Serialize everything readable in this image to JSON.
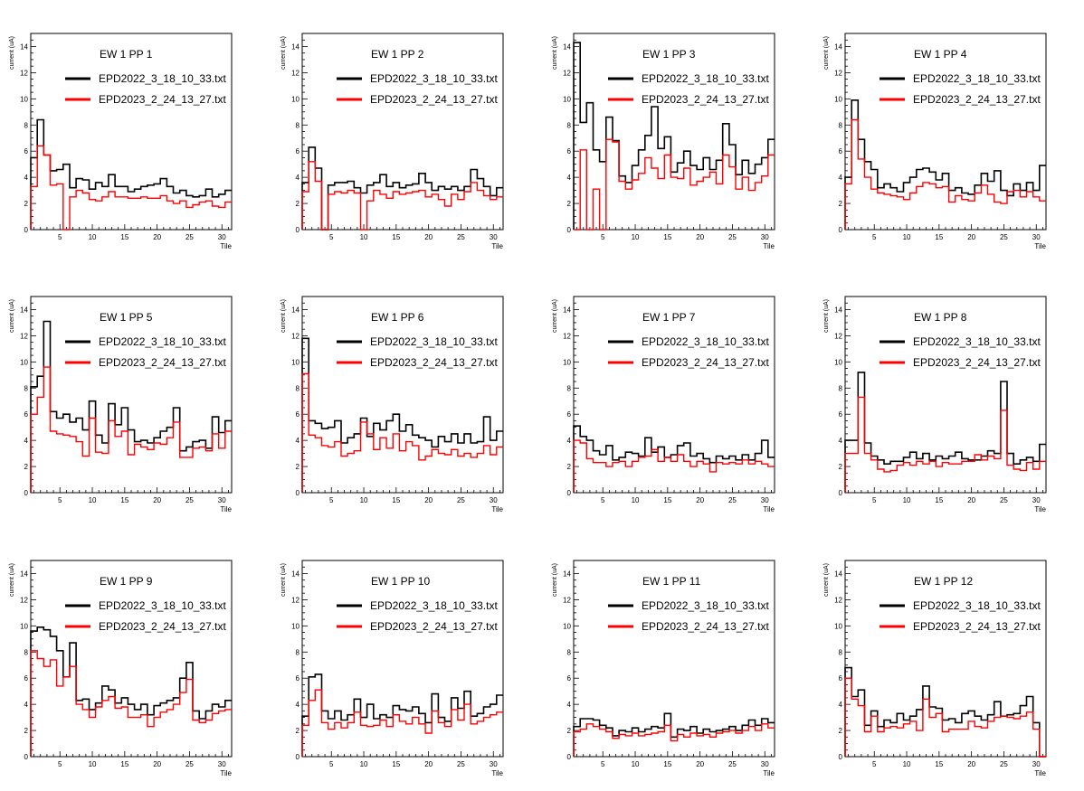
{
  "colors": {
    "series_2022": "#000000",
    "series_2023": "#ff0000"
  },
  "chart_data": [
    {
      "type": "line",
      "title": "EW 1 PP 1",
      "xlabel": "Tile",
      "ylabel": "current (uA)",
      "ylim": [
        0,
        15
      ],
      "xlim": [
        0.5,
        31.5
      ],
      "legend_position": "top",
      "grid": false,
      "series": [
        {
          "name": "EPD2022_3_18_10_33.txt",
          "values": [
            5.5,
            8.4,
            5.7,
            4.5,
            4.6,
            5.0,
            3.2,
            3.9,
            3.8,
            3.1,
            3.6,
            3.3,
            4.2,
            3.3,
            3.3,
            2.9,
            3.1,
            3.3,
            3.4,
            3.5,
            3.9,
            3.3,
            2.8,
            3.0,
            2.6,
            2.5,
            2.6,
            3.1,
            2.5,
            2.7,
            3.0
          ]
        },
        {
          "name": "EPD2023_2_24_13_27.txt",
          "values": [
            3.3,
            6.4,
            5.7,
            3.4,
            3.5,
            0.0,
            2.5,
            3.0,
            2.8,
            2.3,
            2.2,
            2.5,
            2.9,
            2.5,
            2.5,
            2.4,
            2.4,
            2.5,
            2.4,
            2.4,
            2.6,
            2.2,
            2.0,
            2.2,
            1.7,
            1.9,
            2.1,
            2.2,
            1.8,
            1.7,
            2.1
          ]
        }
      ]
    },
    {
      "type": "line",
      "title": "EW 1 PP 2",
      "xlabel": "Tile",
      "ylabel": "current (uA)",
      "ylim": [
        0,
        15
      ],
      "xlim": [
        0.5,
        31.5
      ],
      "legend_position": "top",
      "grid": false,
      "series": [
        {
          "name": "EPD2022_3_18_10_33.txt",
          "values": [
            3.6,
            6.3,
            4.7,
            0.0,
            3.4,
            3.6,
            3.6,
            3.7,
            3.2,
            2.8,
            3.4,
            3.6,
            4.2,
            3.3,
            3.6,
            3.2,
            3.4,
            3.5,
            4.3,
            3.6,
            3.0,
            3.3,
            3.1,
            3.3,
            3.0,
            3.3,
            4.6,
            3.9,
            3.3,
            2.6,
            3.2
          ]
        },
        {
          "name": "EPD2023_2_24_13_27.txt",
          "values": [
            2.9,
            5.2,
            3.7,
            0.0,
            2.7,
            2.9,
            2.8,
            3.0,
            2.8,
            0.0,
            2.2,
            3.0,
            2.7,
            2.4,
            2.9,
            2.7,
            2.8,
            2.9,
            3.0,
            2.5,
            2.7,
            2.3,
            1.8,
            2.7,
            2.3,
            2.9,
            3.6,
            3.0,
            2.6,
            2.3,
            2.5
          ]
        }
      ]
    },
    {
      "type": "line",
      "title": "EW 1 PP 3",
      "xlabel": "Tile",
      "ylabel": "current (uA)",
      "ylim": [
        0,
        15
      ],
      "xlim": [
        0.5,
        31.5
      ],
      "legend_position": "top",
      "grid": false,
      "series": [
        {
          "name": "EPD2022_3_18_10_33.txt",
          "values": [
            14.3,
            8.2,
            9.7,
            6.1,
            5.2,
            8.6,
            6.8,
            4.1,
            3.6,
            4.9,
            6.1,
            7.2,
            9.4,
            6.2,
            7.1,
            4.4,
            5.1,
            6.0,
            4.9,
            4.6,
            5.5,
            4.6,
            5.3,
            8.1,
            6.5,
            4.2,
            5.3,
            4.3,
            5.0,
            5.5,
            6.9
          ]
        },
        {
          "name": "EPD2023_2_24_13_27.txt",
          "values": [
            0.0,
            6.1,
            0.0,
            3.1,
            0.0,
            6.9,
            6.7,
            3.7,
            3.1,
            3.8,
            4.3,
            5.5,
            4.7,
            3.9,
            5.7,
            4.0,
            3.9,
            4.7,
            3.4,
            3.7,
            4.0,
            4.4,
            3.5,
            5.7,
            4.8,
            3.1,
            4.0,
            3.0,
            3.6,
            4.1,
            5.7
          ]
        }
      ]
    },
    {
      "type": "line",
      "title": "EW 1 PP 4",
      "xlabel": "Tile",
      "ylabel": "current (uA)",
      "ylim": [
        0,
        15
      ],
      "xlim": [
        0.5,
        31.5
      ],
      "legend_position": "top",
      "grid": false,
      "series": [
        {
          "name": "EPD2022_3_18_10_33.txt",
          "values": [
            4.0,
            9.9,
            6.9,
            5.2,
            4.6,
            3.2,
            3.5,
            3.2,
            2.9,
            3.6,
            4.0,
            4.6,
            4.7,
            4.4,
            3.8,
            4.3,
            3.0,
            3.2,
            2.8,
            2.7,
            3.4,
            4.3,
            3.7,
            4.5,
            3.0,
            2.6,
            3.5,
            3.0,
            3.6,
            3.0,
            4.9
          ]
        },
        {
          "name": "EPD2023_2_24_13_27.txt",
          "values": [
            3.5,
            8.4,
            5.4,
            4.0,
            3.1,
            2.8,
            2.7,
            2.6,
            2.5,
            2.3,
            2.8,
            3.3,
            3.6,
            3.5,
            3.2,
            3.3,
            2.1,
            2.6,
            2.3,
            2.2,
            2.8,
            3.4,
            2.7,
            2.1,
            2.0,
            2.9,
            3.0,
            2.5,
            2.9,
            2.5,
            2.2
          ]
        }
      ]
    },
    {
      "type": "line",
      "title": "EW 1 PP 5",
      "xlabel": "Tile",
      "ylabel": "current (uA)",
      "ylim": [
        0,
        15
      ],
      "xlim": [
        0.5,
        31.5
      ],
      "legend_position": "top",
      "grid": false,
      "series": [
        {
          "name": "EPD2022_3_18_10_33.txt",
          "values": [
            8.1,
            8.9,
            13.1,
            6.2,
            5.7,
            6.0,
            5.4,
            5.7,
            4.8,
            7.0,
            4.4,
            3.8,
            6.8,
            5.2,
            6.5,
            4.8,
            3.9,
            4.0,
            3.8,
            4.2,
            4.7,
            5.0,
            6.5,
            3.2,
            3.5,
            3.9,
            4.0,
            3.4,
            5.8,
            4.6,
            5.5
          ]
        },
        {
          "name": "EPD2023_2_24_13_27.txt",
          "values": [
            6.0,
            7.3,
            9.6,
            4.7,
            4.5,
            4.4,
            4.3,
            3.9,
            2.8,
            5.7,
            3.1,
            3.0,
            5.5,
            4.3,
            4.7,
            2.9,
            3.7,
            3.5,
            3.3,
            3.8,
            3.7,
            4.2,
            5.4,
            2.7,
            2.7,
            3.4,
            3.5,
            3.2,
            4.5,
            3.4,
            4.7
          ]
        }
      ]
    },
    {
      "type": "line",
      "title": "EW 1 PP 6",
      "xlabel": "Tile",
      "ylabel": "current (uA)",
      "ylim": [
        0,
        15
      ],
      "xlim": [
        0.5,
        31.5
      ],
      "legend_position": "top",
      "grid": false,
      "series": [
        {
          "name": "EPD2022_3_18_10_33.txt",
          "values": [
            11.8,
            5.5,
            5.3,
            4.9,
            5.0,
            5.5,
            3.8,
            4.2,
            4.5,
            5.7,
            4.3,
            5.3,
            4.8,
            5.5,
            6.0,
            4.7,
            5.2,
            4.4,
            4.2,
            4.0,
            3.5,
            4.3,
            3.9,
            4.5,
            3.8,
            4.5,
            3.8,
            3.9,
            5.8,
            4.0,
            4.7
          ]
        },
        {
          "name": "EPD2023_2_24_13_27.txt",
          "values": [
            9.1,
            4.4,
            4.2,
            3.6,
            3.5,
            3.9,
            2.8,
            3.0,
            3.2,
            5.4,
            4.5,
            3.3,
            4.2,
            3.4,
            4.5,
            3.2,
            3.9,
            3.6,
            2.5,
            2.8,
            3.3,
            3.0,
            2.9,
            3.3,
            2.8,
            3.0,
            2.7,
            3.0,
            3.6,
            2.9,
            3.5
          ]
        }
      ]
    },
    {
      "type": "line",
      "title": "EW 1 PP 7",
      "xlabel": "Tile",
      "ylabel": "current (uA)",
      "ylim": [
        0,
        15
      ],
      "xlim": [
        0.5,
        31.5
      ],
      "legend_position": "top",
      "grid": false,
      "series": [
        {
          "name": "EPD2022_3_18_10_33.txt",
          "values": [
            5.1,
            4.3,
            4.0,
            3.2,
            2.9,
            3.6,
            2.5,
            2.7,
            3.1,
            3.0,
            2.8,
            4.2,
            3.1,
            3.5,
            2.7,
            2.9,
            3.6,
            3.8,
            2.8,
            3.0,
            2.6,
            2.3,
            2.8,
            2.6,
            2.8,
            2.5,
            2.9,
            2.5,
            3.0,
            4.0,
            2.7
          ]
        },
        {
          "name": "EPD2023_2_24_13_27.txt",
          "values": [
            4.0,
            3.8,
            2.6,
            2.3,
            2.3,
            2.0,
            2.3,
            2.4,
            2.0,
            2.4,
            2.7,
            2.8,
            3.3,
            2.4,
            2.7,
            2.4,
            2.9,
            2.4,
            2.0,
            2.4,
            2.2,
            1.6,
            2.3,
            2.2,
            2.3,
            2.2,
            2.5,
            2.2,
            2.4,
            2.2,
            2.0
          ]
        }
      ]
    },
    {
      "type": "line",
      "title": "EW 1 PP 8",
      "xlabel": "Tile",
      "ylabel": "current (uA)",
      "ylim": [
        0,
        15
      ],
      "xlim": [
        0.5,
        31.5
      ],
      "legend_position": "top",
      "grid": false,
      "series": [
        {
          "name": "EPD2022_3_18_10_33.txt",
          "values": [
            4.0,
            4.0,
            9.2,
            3.8,
            2.8,
            2.5,
            2.2,
            2.4,
            2.4,
            2.7,
            3.1,
            2.6,
            3.0,
            2.5,
            2.8,
            2.6,
            2.8,
            3.1,
            2.6,
            2.5,
            2.5,
            2.8,
            3.2,
            3.0,
            8.5,
            3.0,
            2.2,
            2.5,
            2.7,
            2.4,
            3.7
          ]
        },
        {
          "name": "EPD2023_2_24_13_27.txt",
          "values": [
            3.0,
            3.0,
            7.3,
            3.0,
            2.5,
            1.8,
            1.6,
            1.7,
            2.1,
            2.3,
            2.1,
            2.4,
            2.2,
            2.4,
            2.0,
            2.3,
            2.2,
            2.2,
            2.4,
            2.4,
            2.9,
            2.5,
            2.8,
            2.6,
            6.3,
            2.1,
            1.8,
            1.7,
            2.3,
            1.8,
            2.4
          ]
        }
      ]
    },
    {
      "type": "line",
      "title": "EW 1 PP 9",
      "xlabel": "Tile",
      "ylabel": "current (uA)",
      "ylim": [
        0,
        15
      ],
      "xlim": [
        0.5,
        31.5
      ],
      "legend_position": "top",
      "grid": false,
      "series": [
        {
          "name": "EPD2022_3_18_10_33.txt",
          "values": [
            9.6,
            9.9,
            9.7,
            9.2,
            8.1,
            6.1,
            8.7,
            4.3,
            4.4,
            3.6,
            4.1,
            5.4,
            5.1,
            4.1,
            4.5,
            4.0,
            3.6,
            4.0,
            3.2,
            3.9,
            4.1,
            4.3,
            4.5,
            6.0,
            7.2,
            3.5,
            2.9,
            3.5,
            4.0,
            3.8,
            4.3
          ]
        },
        {
          "name": "EPD2023_2_24_13_27.txt",
          "values": [
            8.1,
            7.5,
            6.9,
            7.4,
            5.4,
            6.1,
            6.9,
            4.0,
            3.6,
            3.0,
            3.8,
            4.3,
            4.6,
            3.7,
            3.8,
            3.0,
            3.0,
            3.2,
            2.3,
            3.0,
            3.4,
            3.6,
            4.0,
            4.9,
            5.9,
            2.8,
            2.6,
            2.8,
            3.3,
            3.5,
            3.6
          ]
        }
      ]
    },
    {
      "type": "line",
      "title": "EW 1 PP 10",
      "xlabel": "Tile",
      "ylabel": "current (uA)",
      "ylim": [
        0,
        15
      ],
      "xlim": [
        0.5,
        31.5
      ],
      "legend_position": "top",
      "grid": false,
      "series": [
        {
          "name": "EPD2022_3_18_10_33.txt",
          "values": [
            3.1,
            6.1,
            6.3,
            3.5,
            2.9,
            3.5,
            2.8,
            3.2,
            4.4,
            3.0,
            4.0,
            2.9,
            3.2,
            3.0,
            3.9,
            3.6,
            3.5,
            3.8,
            3.3,
            2.6,
            4.8,
            3.0,
            2.7,
            4.5,
            3.7,
            5.0,
            3.1,
            3.3,
            3.8,
            4.0,
            4.7
          ]
        },
        {
          "name": "EPD2023_2_24_13_27.txt",
          "values": [
            2.4,
            4.3,
            5.1,
            2.6,
            2.1,
            2.6,
            2.2,
            2.6,
            3.4,
            2.4,
            2.3,
            2.4,
            2.8,
            2.3,
            3.2,
            2.7,
            2.5,
            3.0,
            2.5,
            1.8,
            3.5,
            2.6,
            2.3,
            3.6,
            2.8,
            4.0,
            2.5,
            2.7,
            3.0,
            3.2,
            3.4
          ]
        }
      ]
    },
    {
      "type": "line",
      "title": "EW 1 PP 11",
      "xlabel": "Tile",
      "ylabel": "current (uA)",
      "ylim": [
        0,
        15
      ],
      "xlim": [
        0.5,
        31.5
      ],
      "legend_position": "top",
      "grid": false,
      "series": [
        {
          "name": "EPD2022_3_18_10_33.txt",
          "values": [
            2.3,
            2.9,
            2.9,
            2.8,
            2.4,
            2.2,
            1.6,
            2.0,
            1.9,
            2.2,
            1.9,
            2.1,
            2.3,
            2.2,
            3.3,
            1.5,
            2.1,
            2.0,
            2.3,
            1.8,
            2.1,
            1.9,
            2.0,
            2.1,
            2.3,
            2.0,
            2.4,
            2.8,
            2.4,
            2.9,
            2.6
          ]
        },
        {
          "name": "EPD2023_2_24_13_27.txt",
          "values": [
            1.9,
            2.1,
            2.5,
            2.3,
            2.1,
            1.9,
            1.4,
            1.7,
            1.6,
            1.8,
            1.6,
            1.7,
            1.8,
            1.9,
            2.4,
            1.2,
            1.7,
            1.5,
            1.8,
            1.6,
            1.7,
            1.5,
            1.8,
            1.9,
            2.0,
            1.8,
            2.0,
            2.3,
            2.0,
            2.5,
            2.2
          ]
        }
      ]
    },
    {
      "type": "line",
      "title": "EW 1 PP 12",
      "xlabel": "Tile",
      "ylabel": "current (uA)",
      "ylim": [
        0,
        15
      ],
      "xlim": [
        0.5,
        31.5
      ],
      "legend_position": "top",
      "grid": false,
      "series": [
        {
          "name": "EPD2022_3_18_10_33.txt",
          "values": [
            6.8,
            4.6,
            5.1,
            2.4,
            3.5,
            2.3,
            2.8,
            2.6,
            3.3,
            2.8,
            3.1,
            3.6,
            5.4,
            3.8,
            3.7,
            2.8,
            2.9,
            2.6,
            3.3,
            3.5,
            3.1,
            2.8,
            3.2,
            4.2,
            3.1,
            3.2,
            3.3,
            3.9,
            4.6,
            2.6,
            0.0
          ]
        },
        {
          "name": "EPD2023_2_24_13_27.txt",
          "values": [
            6.0,
            4.4,
            3.9,
            1.9,
            3.1,
            1.9,
            2.2,
            2.3,
            2.2,
            2.5,
            2.7,
            2.0,
            4.4,
            3.0,
            3.3,
            1.9,
            2.1,
            2.1,
            2.1,
            2.7,
            2.3,
            2.2,
            2.7,
            3.0,
            3.1,
            3.0,
            2.9,
            3.1,
            3.4,
            2.1,
            0.0
          ]
        }
      ]
    }
  ]
}
